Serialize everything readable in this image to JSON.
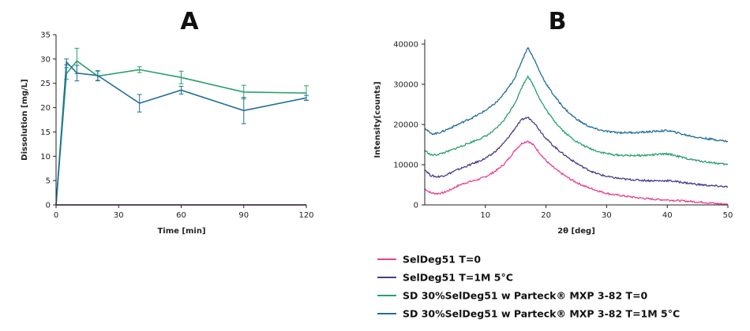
{
  "chart_data": [
    {
      "panel": "A",
      "type": "line",
      "title": "A",
      "xlabel": "Time [min]",
      "ylabel": "Dissolution [mg/L]",
      "xlim": [
        0,
        120
      ],
      "ylim": [
        0,
        35
      ],
      "xticks": [
        0,
        30,
        60,
        90,
        120
      ],
      "yticks": [
        0,
        5,
        10,
        15,
        20,
        25,
        30,
        35
      ],
      "series": [
        {
          "name": "SD 30%SelDeg51 w Parteck MXP 3-82 T=0",
          "color": "#27a06b",
          "x": [
            0,
            5,
            10,
            20,
            40,
            60,
            90,
            120
          ],
          "y": [
            0,
            27.0,
            29.6,
            26.5,
            27.8,
            26.2,
            23.2,
            23.0
          ],
          "err": [
            0,
            1.2,
            2.6,
            1.0,
            0.6,
            1.3,
            1.4,
            1.5
          ]
        },
        {
          "name": "SD 30%SelDeg51 w Parteck MXP 3-82 T=1M 5°C",
          "color": "#1f6e9c",
          "x": [
            0,
            5,
            10,
            20,
            40,
            60,
            90,
            120
          ],
          "y": [
            0,
            29.4,
            27.1,
            26.6,
            20.9,
            23.6,
            19.4,
            22.0
          ],
          "err": [
            0,
            0.6,
            1.6,
            1.0,
            1.8,
            0.8,
            2.7,
            0.5
          ]
        },
        {
          "name": "SelDeg51 T=0",
          "color": "#e8418f",
          "x": [
            0,
            120
          ],
          "y": [
            0,
            0
          ],
          "err": [
            0,
            0
          ]
        },
        {
          "name": "SelDeg51 T=1M 5°C",
          "color": "#4b3a8c",
          "x": [
            0,
            120
          ],
          "y": [
            0,
            0
          ],
          "err": [
            0,
            0
          ]
        }
      ]
    },
    {
      "panel": "B",
      "type": "line",
      "title": "B",
      "xlabel": "2θ [deg]",
      "ylabel": "Intensity[counts]",
      "xlim": [
        0,
        50
      ],
      "ylim": [
        0,
        40000
      ],
      "xticks": [
        10,
        20,
        30,
        40,
        50
      ],
      "yticks": [
        0,
        10000,
        20000,
        30000,
        40000
      ],
      "series": [
        {
          "name": "SelDeg51 T=0",
          "color": "#e8418f",
          "x": [
            0,
            1,
            2,
            3,
            4,
            5,
            6,
            7,
            8,
            9,
            10,
            11,
            12,
            13,
            14,
            15,
            16,
            17,
            18,
            19,
            20,
            21,
            22,
            23,
            24,
            25,
            26,
            27,
            28,
            29,
            30,
            31,
            32,
            33,
            34,
            35,
            36,
            37,
            38,
            39,
            40,
            41,
            42,
            43,
            44,
            45,
            46,
            47,
            48,
            49,
            50
          ],
          "y": [
            4000,
            3000,
            2800,
            3000,
            3600,
            4400,
            5100,
            5600,
            6000,
            6400,
            7000,
            7800,
            8800,
            10000,
            11800,
            13800,
            15300,
            15900,
            14800,
            12800,
            11000,
            9600,
            8400,
            7400,
            6400,
            5600,
            4900,
            4300,
            3800,
            3300,
            2900,
            2600,
            2400,
            2200,
            2000,
            1800,
            1650,
            1500,
            1400,
            1300,
            1250,
            1150,
            1050,
            950,
            850,
            750,
            650,
            500,
            350,
            250,
            100
          ]
        },
        {
          "name": "SelDeg51 T=1M 5°C",
          "color": "#4b3a8c",
          "x": [
            0,
            1,
            2,
            3,
            4,
            5,
            6,
            7,
            8,
            9,
            10,
            11,
            12,
            13,
            14,
            15,
            16,
            17,
            18,
            19,
            20,
            21,
            22,
            23,
            24,
            25,
            26,
            27,
            28,
            29,
            30,
            31,
            32,
            33,
            34,
            35,
            36,
            37,
            38,
            39,
            40,
            41,
            42,
            43,
            44,
            45,
            46,
            47,
            48,
            49,
            50
          ],
          "y": [
            8800,
            7300,
            7000,
            7200,
            7800,
            8500,
            9100,
            9700,
            10300,
            10900,
            11600,
            12500,
            13800,
            15300,
            17200,
            19300,
            21200,
            21800,
            20600,
            18500,
            16600,
            15000,
            13700,
            12500,
            11400,
            10400,
            9500,
            8700,
            8000,
            7500,
            7100,
            6800,
            6600,
            6400,
            6300,
            6200,
            6100,
            6050,
            6000,
            6000,
            6050,
            5900,
            5700,
            5500,
            5300,
            5100,
            4950,
            4800,
            4700,
            4600,
            4500
          ]
        },
        {
          "name": "SD 30%SelDeg51 w Parteck MXP 3-82 T=0",
          "color": "#27a06b",
          "x": [
            0,
            1,
            2,
            3,
            4,
            5,
            6,
            7,
            8,
            9,
            10,
            11,
            12,
            13,
            14,
            15,
            16,
            17,
            18,
            19,
            20,
            21,
            22,
            23,
            24,
            25,
            26,
            27,
            28,
            29,
            30,
            31,
            32,
            33,
            34,
            35,
            36,
            37,
            38,
            39,
            40,
            41,
            42,
            43,
            44,
            45,
            46,
            47,
            48,
            49,
            50
          ],
          "y": [
            13600,
            12400,
            12500,
            12900,
            13400,
            14000,
            14600,
            15200,
            15800,
            16400,
            17100,
            18000,
            19300,
            21000,
            23200,
            25700,
            29200,
            32100,
            29500,
            26300,
            23700,
            21600,
            19800,
            18200,
            16900,
            15800,
            14900,
            14200,
            13600,
            13100,
            12800,
            12500,
            12400,
            12300,
            12300,
            12300,
            12300,
            12400,
            12500,
            12600,
            12700,
            12400,
            12000,
            11600,
            11300,
            11000,
            10800,
            10600,
            10400,
            10200,
            10000
          ]
        },
        {
          "name": "SD 30%SelDeg51 w Parteck MXP 3-82 T=1M 5°C",
          "color": "#1f6e9c",
          "x": [
            0,
            1,
            2,
            3,
            4,
            5,
            6,
            7,
            8,
            9,
            10,
            11,
            12,
            13,
            14,
            15,
            16,
            17,
            18,
            19,
            20,
            21,
            22,
            23,
            24,
            25,
            26,
            27,
            28,
            29,
            30,
            31,
            32,
            33,
            34,
            35,
            36,
            37,
            38,
            39,
            40,
            41,
            42,
            43,
            44,
            45,
            46,
            47,
            48,
            49,
            50
          ],
          "y": [
            19200,
            17700,
            17800,
            18300,
            19000,
            19700,
            20400,
            21100,
            21800,
            22600,
            23500,
            24500,
            25800,
            27500,
            29600,
            32000,
            35800,
            39200,
            36400,
            33000,
            30200,
            27900,
            25900,
            24100,
            22600,
            21400,
            20400,
            19600,
            19000,
            18600,
            18300,
            18100,
            18000,
            18000,
            18000,
            18000,
            18100,
            18200,
            18300,
            18400,
            18500,
            18200,
            17800,
            17400,
            17100,
            16800,
            16600,
            16400,
            16200,
            16000,
            15800
          ]
        }
      ]
    }
  ],
  "legend": {
    "placement": "bottom-right",
    "entries": [
      {
        "label": "SelDeg51 T=0",
        "color": "#e8418f"
      },
      {
        "label": "SelDeg51 T=1M 5°C",
        "color": "#4b3a8c"
      },
      {
        "label": "SD 30%SelDeg51 w Parteck® MXP 3-82 T=0",
        "color": "#27a06b"
      },
      {
        "label": "SD 30%SelDeg51 w Parteck® MXP 3-82 T=1M 5°C",
        "color": "#1f6e9c"
      }
    ]
  }
}
